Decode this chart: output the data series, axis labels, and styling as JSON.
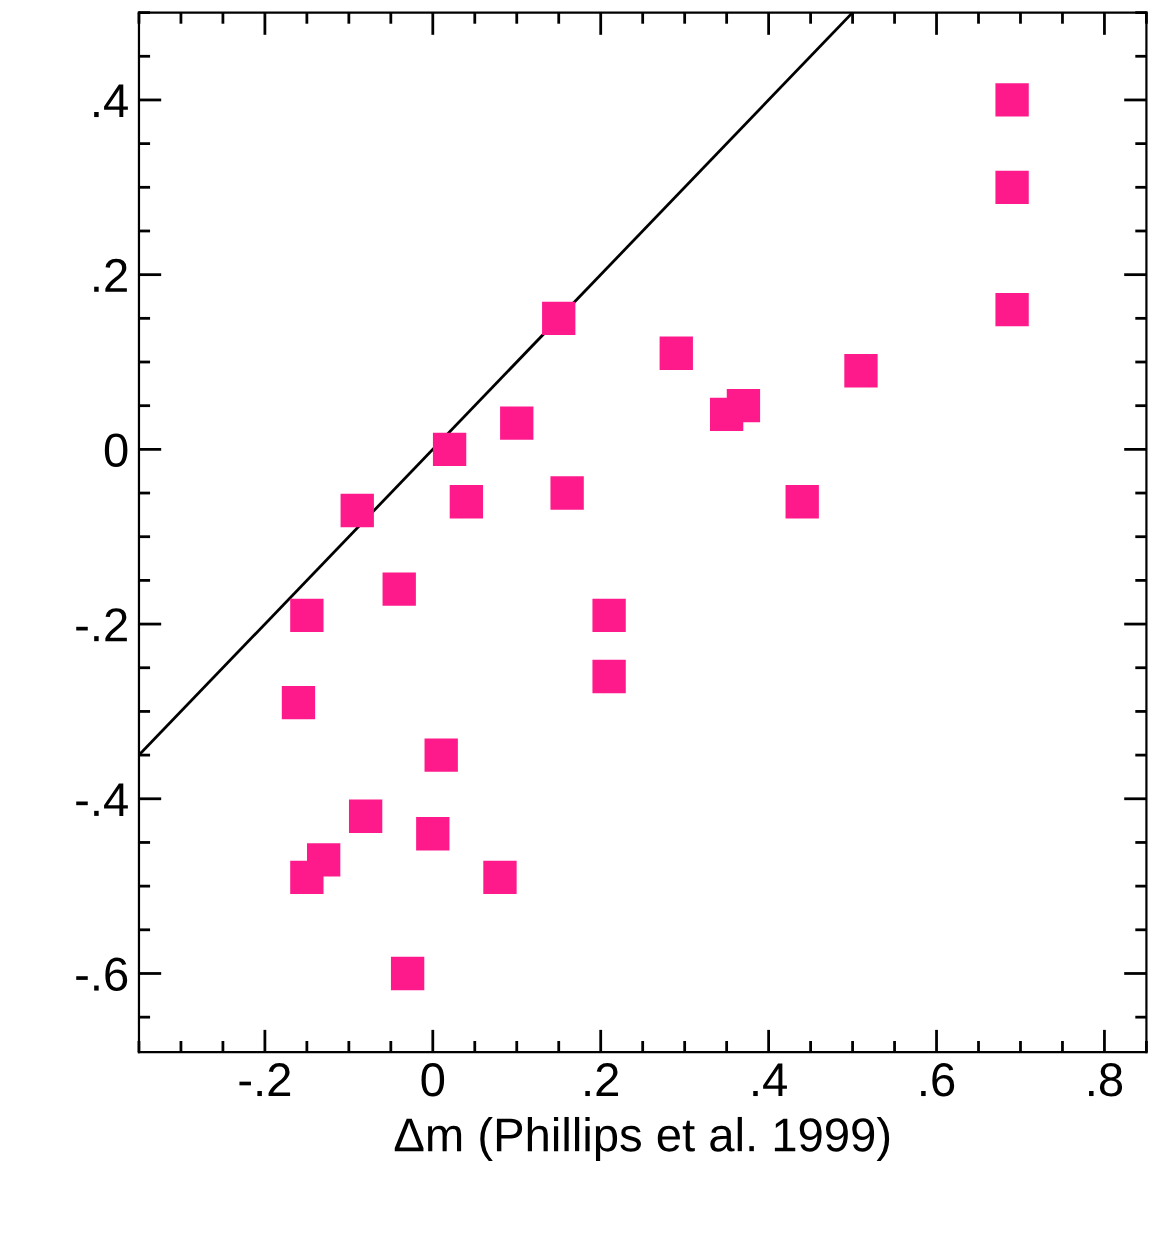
{
  "chart_data": {
    "type": "scatter",
    "xlabel": "Δm (Phillips et al. 1999)",
    "xlim": [
      -0.35,
      0.85
    ],
    "ylim": [
      -0.69,
      0.5
    ],
    "xticks": [
      {
        "value": -0.2,
        "label": "-.2"
      },
      0,
      {
        "value": 0.2,
        "label": ".2"
      },
      {
        "value": 0.4,
        "label": ".4"
      },
      {
        "value": 0.6,
        "label": ".6"
      },
      {
        "value": 0.8,
        "label": ".8"
      }
    ],
    "yticks": [
      {
        "value": -0.6,
        "label": "-.6"
      },
      {
        "value": -0.4,
        "label": "-.4"
      },
      {
        "value": -0.2,
        "label": "-.2"
      },
      0,
      {
        "value": 0.2,
        "label": ".2"
      },
      {
        "value": 0.4,
        "label": ".4"
      }
    ],
    "grid": false,
    "marker": "square",
    "series": [
      {
        "color": "#ff1a8c",
        "x": [
          0.69,
          0.69,
          0.69,
          0.15,
          0.29,
          0.51,
          0.35,
          0.37,
          0.44,
          0.1,
          0.02,
          0.04,
          0.16,
          -0.09,
          -0.04,
          -0.15,
          0.21,
          0.21,
          -0.16,
          0.01,
          -0.08,
          -0.13,
          -0.15,
          0,
          0.08,
          -0.03
        ],
        "values": [
          0.4,
          0.3,
          0.16,
          0.15,
          0.11,
          0.09,
          0.04,
          0.05,
          -0.06,
          0.03,
          0,
          -0.06,
          -0.05,
          -0.07,
          -0.16,
          -0.19,
          -0.19,
          -0.26,
          -0.29,
          -0.35,
          -0.42,
          -0.47,
          -0.49,
          -0.44,
          -0.49,
          -0.6
        ]
      },
      {
        "type": "line",
        "marker": "none",
        "color": "#000000",
        "x": [
          -0.35,
          0.5
        ],
        "values": [
          -0.35,
          0.5
        ]
      }
    ]
  }
}
